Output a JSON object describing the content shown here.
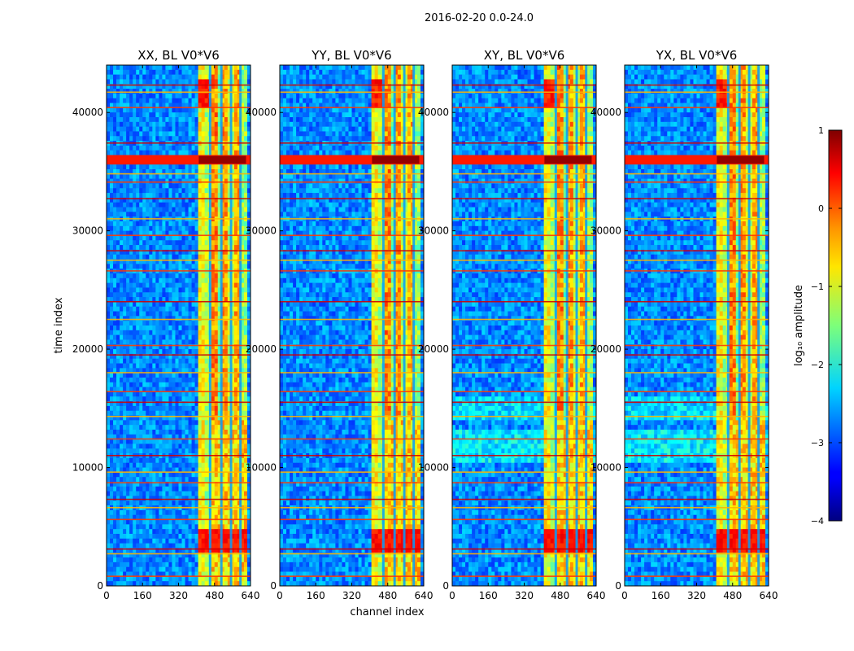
{
  "figure": {
    "suptitle": "2016-02-20 0.0-24.0",
    "shared_xlabel": "channel index",
    "shared_ylabel": "time index"
  },
  "chart_data": {
    "type": "heatmap",
    "colormap": "jet",
    "x_range": [
      0,
      640
    ],
    "y_range": [
      0,
      44000
    ],
    "x_ticks": [
      0,
      160,
      320,
      480,
      640
    ],
    "y_ticks": [
      0,
      10000,
      20000,
      30000,
      40000
    ],
    "panels": [
      {
        "title": "XX, BL V0*V6",
        "y_tick_labels": [
          "0",
          "10000",
          "20000",
          "30000",
          "40000"
        ]
      },
      {
        "title": "YY, BL V0*V6",
        "y_tick_labels": [
          "0",
          "10000",
          "20000",
          "30000",
          "40000"
        ]
      },
      {
        "title": "XY, BL V0*V6",
        "y_tick_labels": [
          "0",
          "10000",
          "20000",
          "30000",
          "40000"
        ]
      },
      {
        "title": "YX, BL V0*V6",
        "y_tick_labels": [
          "0",
          "10000",
          "20000",
          "30000",
          "40000"
        ]
      }
    ],
    "bright_channel_band": [
      410,
      620
    ],
    "strong_rfi_time_band": [
      35600,
      36400
    ],
    "horizontal_flag_rows": [
      800,
      2700,
      3100,
      5600,
      6600,
      7300,
      8700,
      9600,
      11000,
      12400,
      14300,
      15500,
      16400,
      18000,
      19500,
      20300,
      22500,
      24000,
      26600,
      27500,
      28300,
      29600,
      31000,
      32700,
      34100,
      34800,
      37400,
      40400,
      41700,
      42300
    ],
    "colorbar": {
      "label": "log₁₀ amplitude",
      "range": [
        -4,
        1
      ],
      "ticks": [
        1,
        0,
        -1,
        -2,
        -3,
        -4
      ],
      "tick_labels": [
        "1",
        "0",
        "−1",
        "−2",
        "−3",
        "−4"
      ]
    }
  }
}
